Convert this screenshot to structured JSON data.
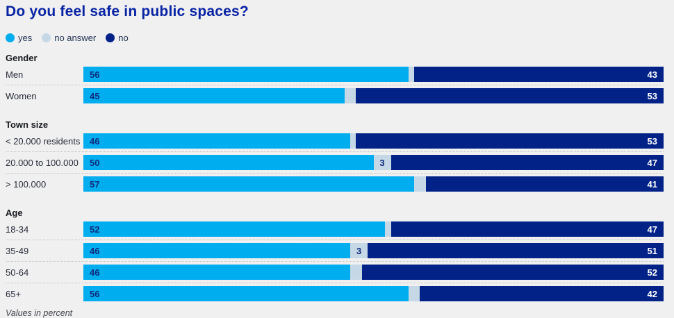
{
  "chart_data": {
    "type": "bar",
    "stacked": true,
    "orientation": "horizontal",
    "unit": "percent",
    "xlim": [
      0,
      100
    ],
    "title": "Do you feel safe in public spaces?",
    "footnote": "Values in percent",
    "legend": [
      {
        "label": "yes"
      },
      {
        "label": "no answer"
      },
      {
        "label": "no"
      }
    ],
    "colors": {
      "yes": "#00adee",
      "no_answer": "#c6d8e6",
      "no": "#022287",
      "title": "#0823a3",
      "background": "#f0f0f1"
    },
    "groups": [
      {
        "header": "Gender",
        "rows": [
          {
            "label": "Men",
            "yes": 56,
            "no_answer": 1,
            "no": 43
          },
          {
            "label": "Women",
            "yes": 45,
            "no_answer": 2,
            "no": 53
          }
        ]
      },
      {
        "header": "Town size",
        "rows": [
          {
            "label": "< 20.000 residents",
            "yes": 46,
            "no_answer": 1,
            "no": 53
          },
          {
            "label": "20.000 to 100.000",
            "yes": 50,
            "no_answer": 3,
            "no": 47,
            "na_label": "3"
          },
          {
            "label": "> 100.000",
            "yes": 57,
            "no_answer": 2,
            "no": 41
          }
        ]
      },
      {
        "header": "Age",
        "rows": [
          {
            "label": "18-34",
            "yes": 52,
            "no_answer": 1,
            "no": 47
          },
          {
            "label": "35-49",
            "yes": 46,
            "no_answer": 3,
            "no": 51,
            "na_label": "3"
          },
          {
            "label": "50-64",
            "yes": 46,
            "no_answer": 2,
            "no": 52
          },
          {
            "label": "65+",
            "yes": 56,
            "no_answer": 2,
            "no": 42
          }
        ]
      }
    ]
  }
}
